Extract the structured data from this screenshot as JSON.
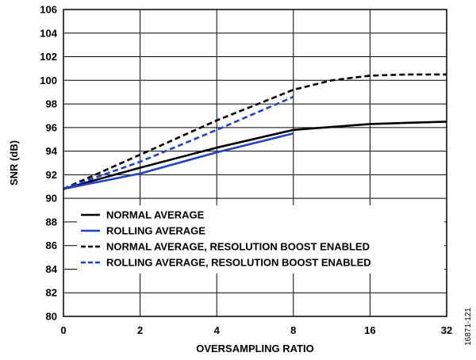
{
  "chart_data": {
    "type": "line",
    "title": "",
    "xlabel": "OVERSAMPLING RATIO",
    "ylabel": "SNR (dB)",
    "x_categories": [
      "0",
      "2",
      "4",
      "8",
      "16",
      "32"
    ],
    "ylim": [
      80,
      106
    ],
    "y_ticks": [
      80,
      82,
      84,
      86,
      88,
      90,
      92,
      94,
      96,
      98,
      100,
      102,
      104,
      106
    ],
    "grid": true,
    "legend_position": "bottom-right",
    "series": [
      {
        "name": "NORMAL AVERAGE",
        "color": "#000000",
        "dashed": false,
        "points": [
          [
            0,
            90.8
          ],
          [
            1,
            92.6
          ],
          [
            2,
            94.3
          ],
          [
            3,
            95.8
          ],
          [
            4,
            96.3
          ],
          [
            5,
            96.5
          ]
        ]
      },
      {
        "name": "ROLLING AVERAGE",
        "color": "#1f3fd8",
        "dashed": false,
        "points": [
          [
            0,
            90.8
          ],
          [
            1,
            92.1
          ],
          [
            2,
            93.9
          ],
          [
            3,
            95.5
          ]
        ]
      },
      {
        "name": "NORMAL AVERAGE, RESOLUTION BOOST ENABLED",
        "color": "#000000",
        "dashed": true,
        "points": [
          [
            0,
            90.8
          ],
          [
            1,
            93.7
          ],
          [
            2,
            96.6
          ],
          [
            3,
            99.2
          ],
          [
            3.5,
            100.0
          ],
          [
            4,
            100.4
          ],
          [
            4.5,
            100.5
          ],
          [
            5,
            100.5
          ]
        ]
      },
      {
        "name": "ROLLING AVERAGE, RESOLUTION BOOST ENABLED",
        "color": "#1f3fd8",
        "dashed": true,
        "points": [
          [
            0,
            90.8
          ],
          [
            1,
            93.1
          ],
          [
            2,
            95.8
          ],
          [
            3,
            98.6
          ]
        ]
      }
    ]
  },
  "figure_id": "16871-121"
}
